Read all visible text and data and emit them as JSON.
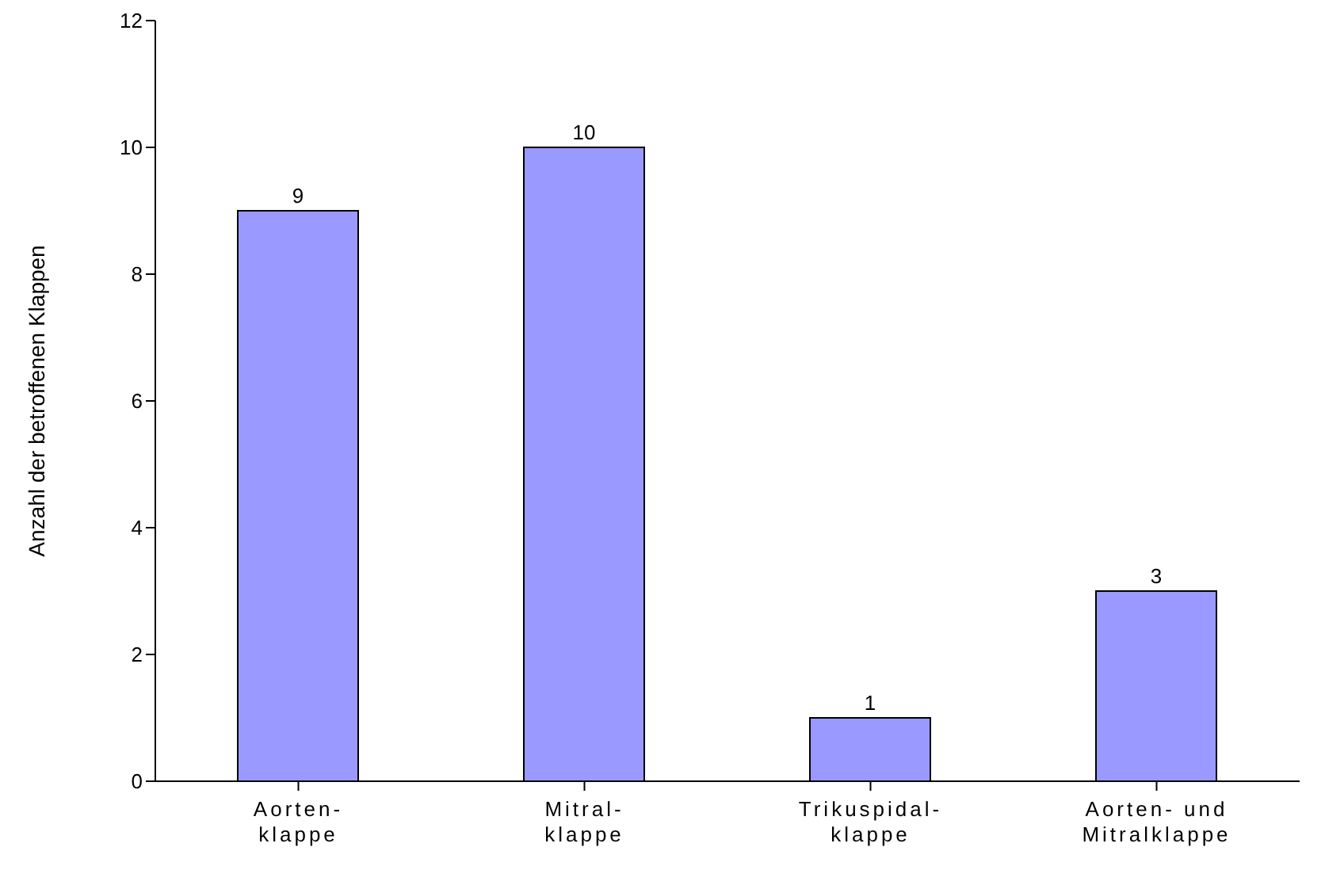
{
  "chart_data": {
    "type": "bar",
    "ylabel": "Anzahl der betroffenen Klappen",
    "categories": [
      "Aorten-\nklappe",
      "Mitral-\nklappe",
      "Trikuspidal-\nklappe",
      "Aorten- und\nMitralklappe"
    ],
    "values": [
      9,
      10,
      1,
      3
    ],
    "color": "#9999ff",
    "ylim": [
      0,
      12
    ],
    "yticks": [
      0,
      2,
      4,
      6,
      8,
      10,
      12
    ],
    "grid": false,
    "data_labels": true,
    "legend": false
  }
}
